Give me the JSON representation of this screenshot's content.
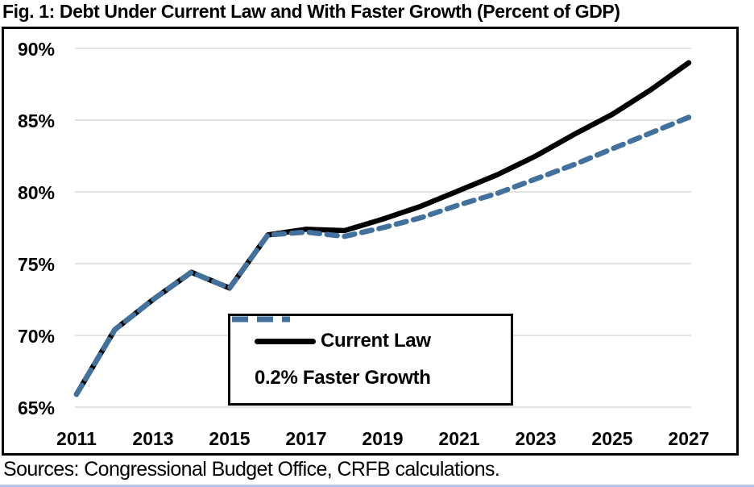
{
  "title": "Fig. 1: Debt Under Current Law and With Faster Growth (Percent of GDP)",
  "source": "Sources: Congressional Budget Office, CRFB calculations.",
  "colors": {
    "current_law": "#000000",
    "faster_growth": "#41719C",
    "gridline": "#D9D9D9",
    "frame": "#000000",
    "bottom_rule": "#B4C6E7"
  },
  "chart_data": {
    "type": "line",
    "title": "Fig. 1: Debt Under Current Law and With Faster Growth (Percent of GDP)",
    "xlabel": "",
    "ylabel": "Percent of GDP",
    "x": [
      2011,
      2012,
      2013,
      2014,
      2015,
      2016,
      2017,
      2018,
      2019,
      2020,
      2021,
      2022,
      2023,
      2024,
      2025,
      2026,
      2027
    ],
    "x_tick_labels": [
      "2011",
      "2013",
      "2015",
      "2017",
      "2019",
      "2021",
      "2023",
      "2025",
      "2027"
    ],
    "y_ticks": [
      65,
      70,
      75,
      80,
      85,
      90
    ],
    "y_tick_labels": [
      "65%",
      "70%",
      "75%",
      "80%",
      "85%",
      "90%"
    ],
    "ylim": [
      63,
      91.5
    ],
    "grid": "horizontal",
    "legend_position": "boxed, inside lower-center",
    "series": [
      {
        "name": "Current Law",
        "color": "#000000",
        "style": "solid",
        "values": [
          65.9,
          70.4,
          72.5,
          74.4,
          73.3,
          77.0,
          77.4,
          77.3,
          78.1,
          79.0,
          80.1,
          81.2,
          82.5,
          84.0,
          85.4,
          87.1,
          89.0
        ]
      },
      {
        "name": "0.2% Faster Growth",
        "color": "#41719C",
        "style": "dashed",
        "values": [
          65.9,
          70.4,
          72.5,
          74.4,
          73.3,
          77.0,
          77.2,
          76.9,
          77.5,
          78.2,
          79.1,
          79.9,
          80.9,
          81.9,
          83.0,
          84.1,
          85.2
        ]
      }
    ]
  }
}
